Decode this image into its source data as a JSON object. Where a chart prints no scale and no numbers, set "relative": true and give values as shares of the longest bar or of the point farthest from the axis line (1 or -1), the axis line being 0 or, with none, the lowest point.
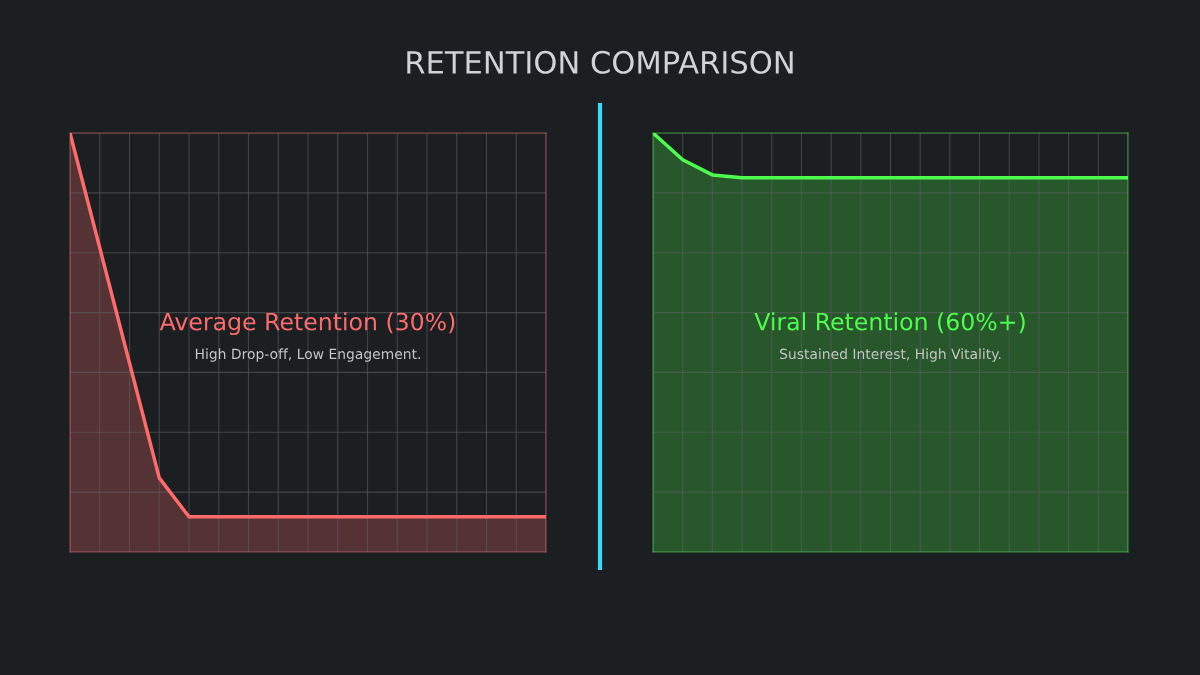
{
  "chart_data": [
    {
      "type": "area",
      "title": "RETENTION COMPARISON",
      "relative": true,
      "grid": true,
      "legend": false,
      "categories": [
        null,
        null,
        null,
        null,
        null,
        null,
        null,
        null,
        null,
        null,
        null,
        null,
        null,
        null,
        null,
        null,
        null
      ],
      "series": [
        {
          "color": "#ff6b6b",
          "values": [
            1.0,
            0.726,
            0.451,
            0.177,
            0.084,
            0.084,
            0.084,
            0.084,
            0.084,
            0.084,
            0.084,
            0.084,
            0.084,
            0.084,
            0.084,
            0.084,
            0.084
          ]
        }
      ],
      "annotations": [
        "Average Retention (30%)",
        "High Drop-off, Low Engagement."
      ]
    },
    {
      "type": "area",
      "relative": true,
      "grid": true,
      "legend": false,
      "categories": [
        null,
        null,
        null,
        null,
        null,
        null,
        null,
        null,
        null,
        null,
        null,
        null,
        null,
        null,
        null,
        null,
        null
      ],
      "series": [
        {
          "color": "#4cff4c",
          "values": [
            1.0,
            0.936,
            0.9,
            0.893,
            0.893,
            0.893,
            0.893,
            0.893,
            0.893,
            0.893,
            0.893,
            0.893,
            0.893,
            0.893,
            0.893,
            0.893,
            0.893
          ]
        }
      ],
      "annotations": [
        "Viral Retention (60%+)",
        "Sustained Interest, High Vitality."
      ]
    }
  ]
}
